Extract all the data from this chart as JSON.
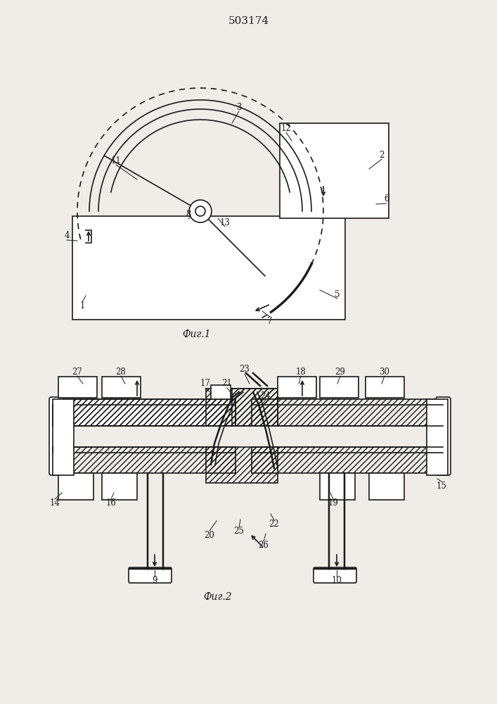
{
  "title": "503174",
  "fig1_label": "Фиг.1",
  "fig2_label": "Фиг.2",
  "bg_color": "#f0ede8",
  "line_color": "#1a1a1a"
}
